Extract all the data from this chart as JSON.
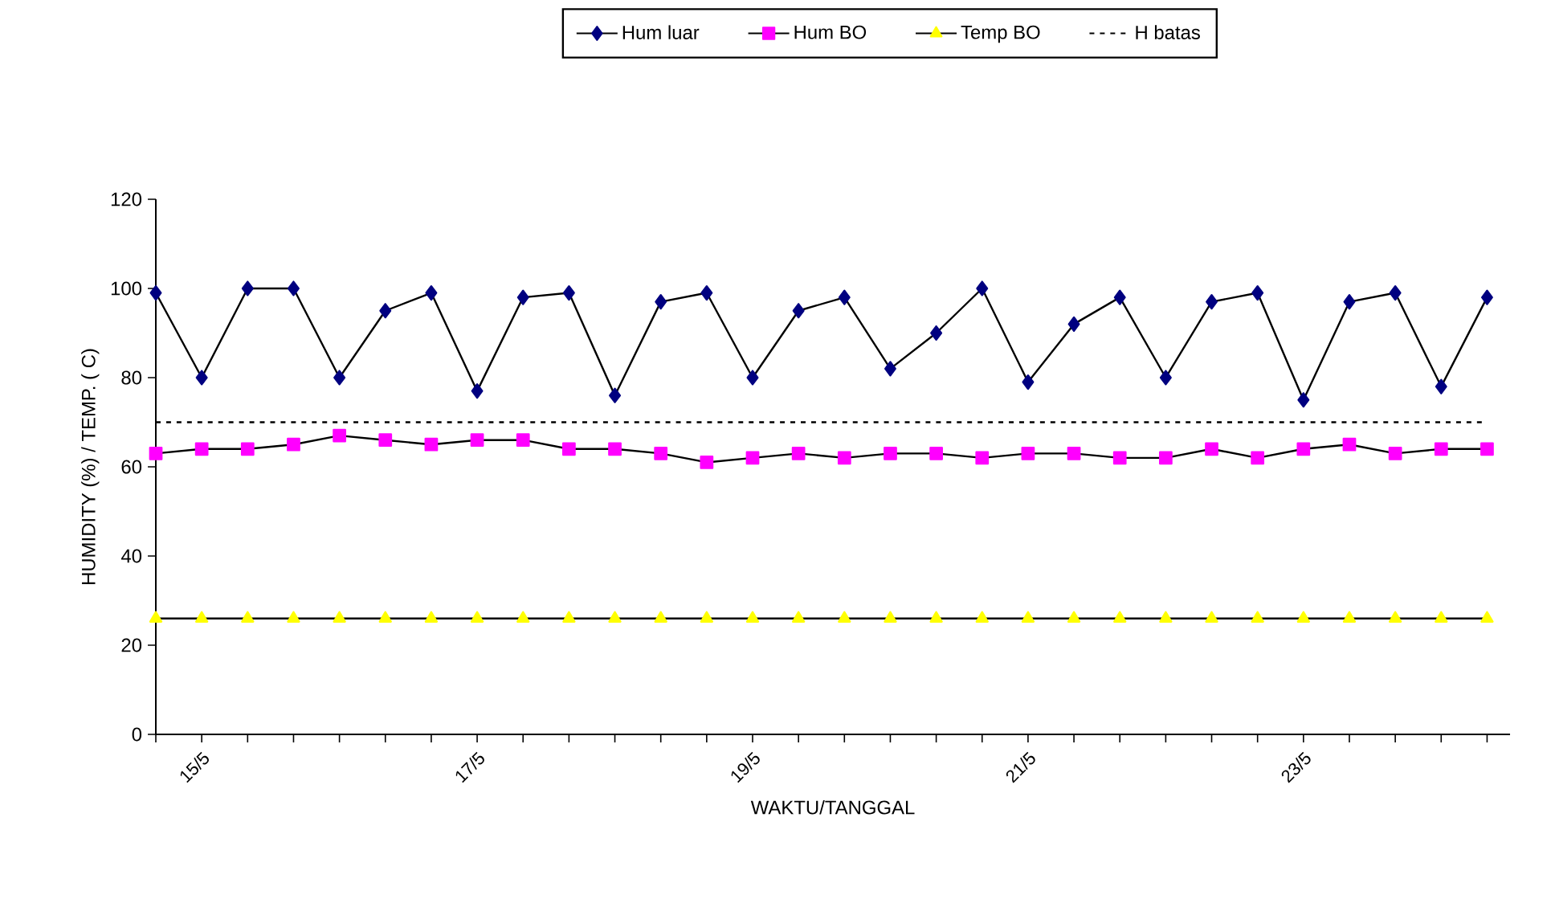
{
  "chart_data": {
    "type": "line",
    "xlabel": "WAKTU/TANGGAL",
    "ylabel": "HUMIDITY (%) / TEMP. ( C)",
    "categories": [
      null,
      "15/5",
      null,
      null,
      null,
      null,
      null,
      "17/5",
      null,
      null,
      null,
      null,
      null,
      "19/5",
      null,
      null,
      null,
      null,
      null,
      "21/5",
      null,
      null,
      null,
      null,
      null,
      "23/5",
      null,
      null,
      null,
      null
    ],
    "ylim": [
      0,
      120
    ],
    "yticks": [
      0,
      20,
      40,
      60,
      80,
      100,
      120
    ],
    "grid": false,
    "legend": "top",
    "series": [
      {
        "name": "Hum luar",
        "color": "#000080",
        "marker": "diamond",
        "line_style": "solid",
        "values": [
          99,
          80,
          100,
          100,
          80,
          95,
          99,
          77,
          98,
          99,
          76,
          97,
          99,
          80,
          95,
          98,
          82,
          90,
          100,
          79,
          92,
          98,
          80,
          97,
          99,
          75,
          97,
          99,
          78,
          98
        ]
      },
      {
        "name": "Hum BO",
        "color": "#ff00ff",
        "marker": "square",
        "line_style": "solid",
        "values": [
          63,
          64,
          64,
          65,
          67,
          66,
          65,
          66,
          66,
          64,
          64,
          63,
          61,
          62,
          63,
          62,
          63,
          63,
          62,
          63,
          63,
          62,
          62,
          64,
          62,
          64,
          65,
          63,
          64,
          64
        ]
      },
      {
        "name": "Temp BO",
        "color": "#ffff00",
        "marker": "triangle",
        "line_style": "solid",
        "values": [
          26,
          26,
          26,
          26,
          26,
          26,
          26,
          26,
          26,
          26,
          26,
          26,
          26,
          26,
          26,
          26,
          26,
          26,
          26,
          26,
          26,
          26,
          26,
          26,
          26,
          26,
          26,
          26,
          26,
          26
        ]
      },
      {
        "name": "H batas",
        "color": "#000000",
        "marker": "none",
        "line_style": "dashed",
        "values": [
          70,
          70,
          70,
          70,
          70,
          70,
          70,
          70,
          70,
          70,
          70,
          70,
          70,
          70,
          70,
          70,
          70,
          70,
          70,
          70,
          70,
          70,
          70,
          70,
          70,
          70,
          70,
          70,
          70,
          70
        ]
      }
    ]
  }
}
